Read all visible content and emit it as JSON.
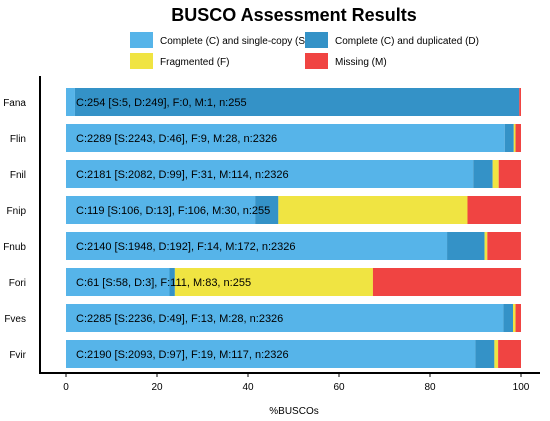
{
  "chart_data": {
    "type": "bar",
    "orientation": "horizontal",
    "stacked": true,
    "title": "BUSCO Assessment Results",
    "xlabel": "%BUSCOs",
    "ylabel": "",
    "xlim": [
      0,
      100
    ],
    "xticks": [
      0,
      20,
      40,
      60,
      80,
      100
    ],
    "grid": false,
    "legend_position": "top",
    "colors": {
      "single": "#56B4E9",
      "duplicated": "#3492C7",
      "fragmented": "#F0E442",
      "missing": "#F04442"
    },
    "legend": [
      {
        "key": "single",
        "label": "Complete (C) and single-copy (S)"
      },
      {
        "key": "duplicated",
        "label": "Complete (C) and duplicated (D)"
      },
      {
        "key": "fragmented",
        "label": "Fragmented (F)"
      },
      {
        "key": "missing",
        "label": "Missing (M)"
      }
    ],
    "categories": [
      "Fana",
      "Flin",
      "Fnil",
      "Fnip",
      "Fnub",
      "Fori",
      "Fves",
      "Fvir"
    ],
    "series": [
      {
        "key": "single",
        "name": "Complete (C) and single-copy (S)",
        "values": [
          1.96,
          96.43,
          89.51,
          41.57,
          83.75,
          22.75,
          96.13,
          89.98
        ]
      },
      {
        "key": "duplicated",
        "name": "Complete (C) and duplicated (D)",
        "values": [
          97.65,
          1.98,
          4.26,
          5.1,
          8.25,
          1.18,
          2.11,
          4.17
        ]
      },
      {
        "key": "fragmented",
        "name": "Fragmented (F)",
        "values": [
          0.0,
          0.39,
          1.33,
          41.57,
          0.6,
          43.53,
          0.56,
          0.82
        ]
      },
      {
        "key": "missing",
        "name": "Missing (M)",
        "values": [
          0.39,
          1.2,
          4.9,
          11.76,
          7.39,
          32.55,
          1.2,
          5.03
        ]
      }
    ],
    "bar_labels": [
      "C:254 [S:5, D:249], F:0, M:1, n:255",
      "C:2289 [S:2243, D:46], F:9, M:28, n:2326",
      "C:2181 [S:2082, D:99], F:31, M:114, n:2326",
      "C:119 [S:106, D:13], F:106, M:30, n:255",
      "C:2140 [S:1948, D:192], F:14, M:172, n:2326",
      "C:61 [S:58, D:3], F:111, M:83, n:255",
      "C:2285 [S:2236, D:49], F:13, M:28, n:2326",
      "C:2190 [S:2093, D:97], F:19, M:117, n:2326"
    ]
  }
}
